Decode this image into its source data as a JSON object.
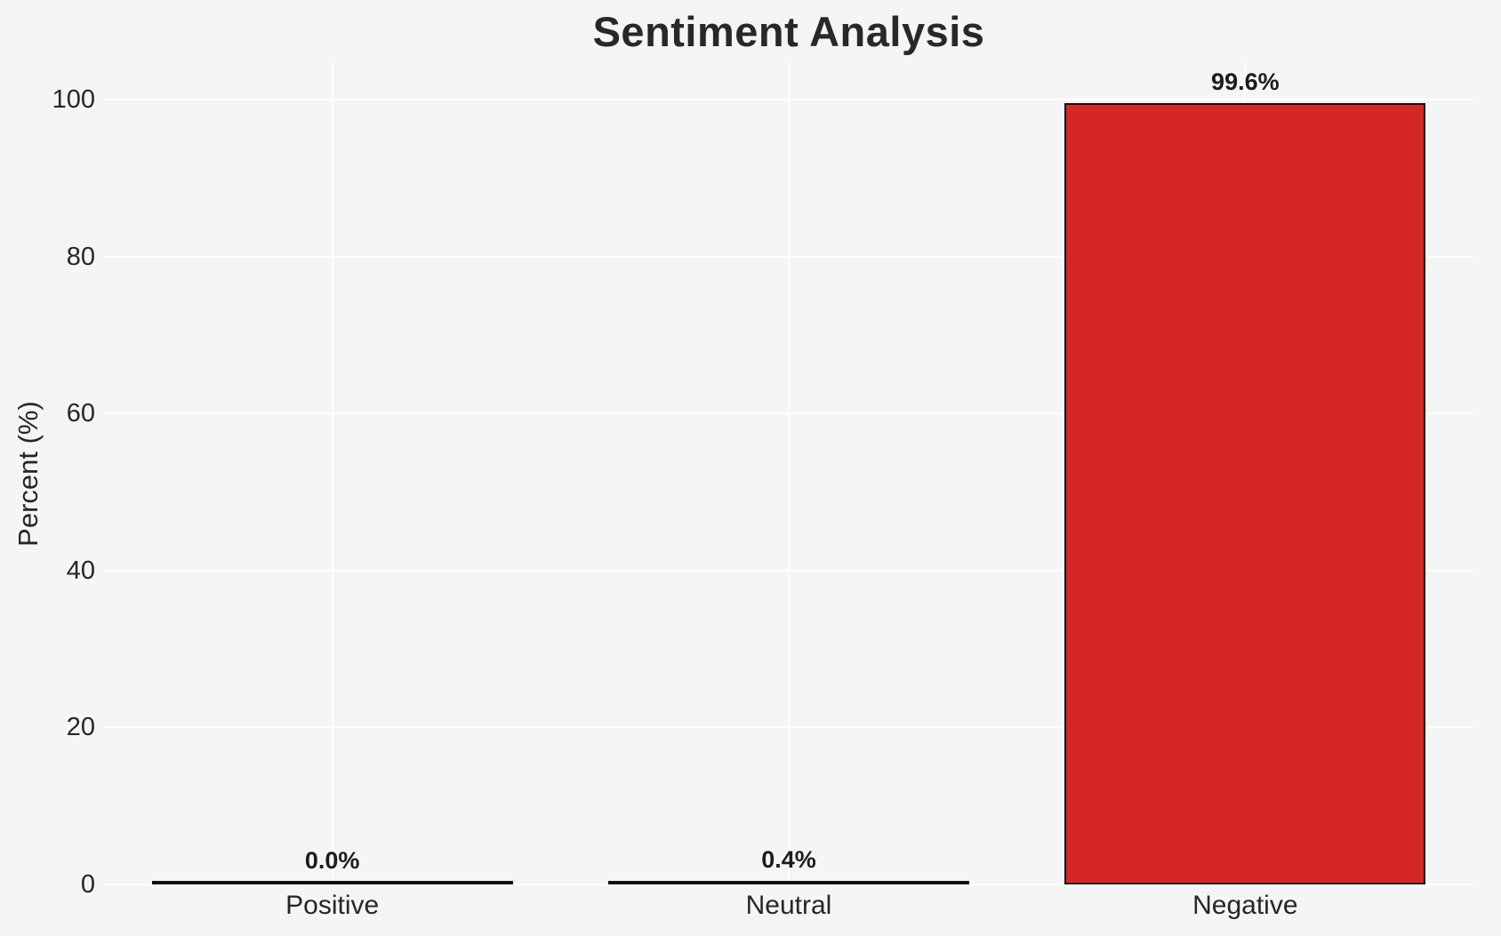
{
  "chart_data": {
    "type": "bar",
    "title": "Sentiment Analysis",
    "ylabel": "Percent (%)",
    "xlabel": "",
    "categories": [
      "Positive",
      "Neutral",
      "Negative"
    ],
    "values": [
      0.0,
      0.4,
      99.6
    ],
    "value_labels": [
      "0.0%",
      "0.4%",
      "99.6%"
    ],
    "yticks": [
      "0",
      "20",
      "40",
      "60",
      "80",
      "100"
    ],
    "ytick_values": [
      0,
      20,
      40,
      60,
      80,
      100
    ],
    "ylim": [
      0,
      104.8
    ],
    "grid": "both",
    "legend": "none",
    "bar_color": "#d62728",
    "bar_edge_color": "#111111",
    "background_color": "#f5f5f6",
    "gridline_color": "#ffffff",
    "text_color": "#262626"
  }
}
